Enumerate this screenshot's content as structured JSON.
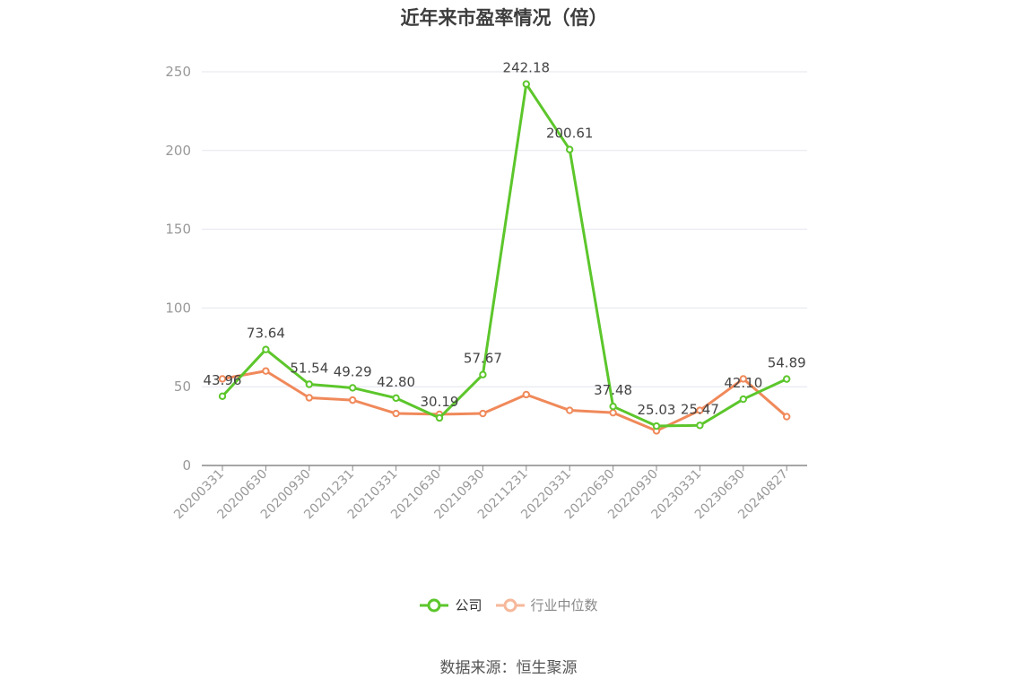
{
  "chart_data": {
    "type": "line",
    "title": "近年来市盈率情况（倍）",
    "categories": [
      "20200331",
      "20200630",
      "20200930",
      "20201231",
      "20210331",
      "20210630",
      "20210930",
      "20211231",
      "20220331",
      "20220630",
      "20220930",
      "20230331",
      "20230630",
      "20240827"
    ],
    "series": [
      {
        "name": "公司",
        "color": "#5cc62b",
        "values": [
          43.96,
          73.64,
          51.54,
          49.29,
          42.8,
          30.19,
          57.67,
          242.18,
          200.61,
          37.48,
          25.03,
          25.47,
          42.1,
          54.89
        ],
        "labels": [
          "43.96",
          "73.64",
          "51.54",
          "49.29",
          "42.80",
          "30.19",
          "57.67",
          "242.18",
          "200.61",
          "37.48",
          "25.03",
          "25.47",
          "42.10",
          "54.89"
        ]
      },
      {
        "name": "行业中位数",
        "color": "#f0895a",
        "legend_color": "#f6b89a",
        "values": [
          55,
          60,
          43,
          41.5,
          33,
          32.5,
          33,
          45,
          35,
          33.5,
          22,
          35,
          55,
          31
        ]
      }
    ],
    "yticks": [
      "0",
      "50",
      "100",
      "150",
      "200",
      "250"
    ],
    "ylim": [
      0,
      250
    ],
    "grid": true,
    "legend_position": "bottom"
  },
  "source_text": "数据来源：恒生聚源"
}
